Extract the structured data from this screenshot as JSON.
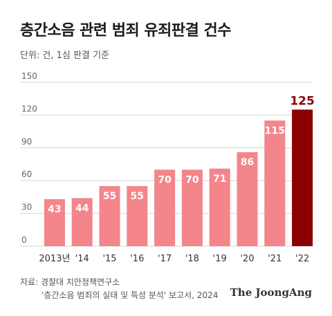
{
  "chart_data": {
    "type": "bar",
    "title": "층간소음 관련 범죄 유죄판결 건수",
    "unit_note": "단위: 건, 1심 판결 기준",
    "categories": [
      "2013년",
      "'14",
      "'15",
      "'16",
      "'17",
      "'18",
      "'19",
      "'20",
      "'21",
      "'22"
    ],
    "values": [
      43,
      44,
      55,
      55,
      70,
      70,
      71,
      86,
      115,
      125
    ],
    "yticks": [
      0,
      30,
      60,
      90,
      120,
      150
    ],
    "ylim": [
      0,
      150
    ],
    "grid": true,
    "colors": {
      "bar": "#f4858b",
      "highlight": "#8b0000",
      "grid": "#d6d6d6"
    },
    "highlight_index": 9
  },
  "source": {
    "line1": "자료: 경찰대 치안정책연구소",
    "line2": "'층간소음 범죄의 실태 및 특성 분석' 보고서, 2024"
  },
  "brand": {
    "logo_text": "The JoongAng"
  }
}
